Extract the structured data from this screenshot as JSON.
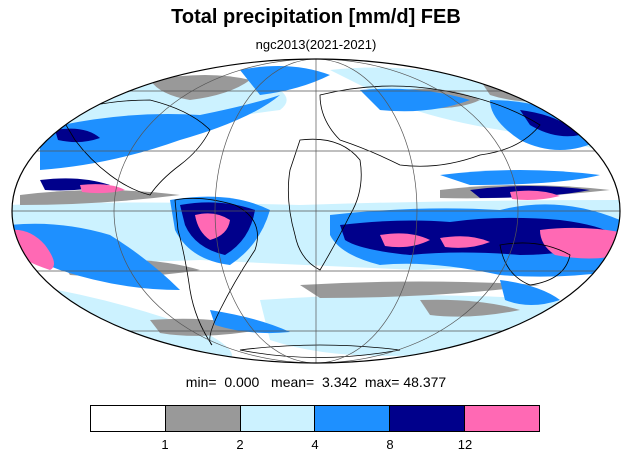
{
  "title": "Total precipitation [mm/d] FEB",
  "subtitle": "ngc2013(2021-2021)",
  "stats": {
    "min_label": "min=",
    "min_value": "0.000",
    "mean_label": "mean=",
    "mean_value": "3.342",
    "max_label": "max=",
    "max_value": "48.377"
  },
  "colorbar": {
    "colors": [
      "#ffffff",
      "#999999",
      "#ccf2ff",
      "#1e90ff",
      "#00008b",
      "#ff69b4"
    ],
    "ticks": [
      "1",
      "2",
      "4",
      "8",
      "12"
    ]
  },
  "map": {
    "projection": "mollweide",
    "colors": {
      "ocean_dry": "#ffffff",
      "coast": "#000000",
      "grid": "#555555"
    }
  }
}
